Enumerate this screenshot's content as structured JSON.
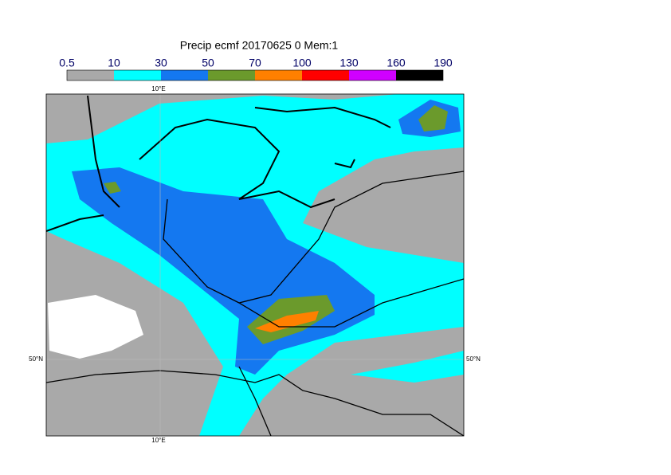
{
  "title": "Precip ecmf 20170625 0 Mem:1",
  "colorbar": {
    "ticks": [
      0.5,
      10,
      30,
      50,
      70,
      100,
      130,
      160,
      190
    ],
    "colors": [
      "#a9a9a9",
      "#00ffff",
      "#1478f0",
      "#6b9a2c",
      "#ff8000",
      "#ff0000",
      "#d000ff",
      "#000000"
    ]
  },
  "map": {
    "lon_labels": [
      "10°E",
      "10°E"
    ],
    "lat_labels": [
      "50°N",
      "50°N"
    ]
  }
}
